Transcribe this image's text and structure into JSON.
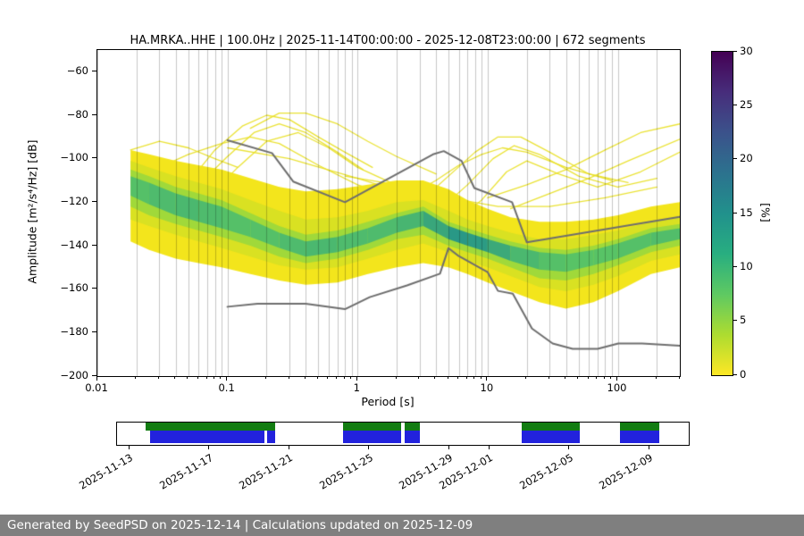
{
  "footer": {
    "text": "Generated by SeedPSD on 2025-12-14 | Calculations updated on 2025-12-09",
    "bg": "#7f7f7f",
    "fg": "#ffffff"
  },
  "chart_data": {
    "type": "heatmap",
    "title": "HA.MRKA..HHE | 100.0Hz | 2025-11-14T00:00:00 - 2025-12-08T23:00:00 | 672 segments",
    "xlabel": "Period [s]",
    "ylabel": "Amplitude [m²/s⁴/Hz] [dB]",
    "xscale": "log",
    "xlim": [
      0.01,
      300
    ],
    "ylim": [
      -200,
      -50
    ],
    "grid": true,
    "xticks": [
      {
        "v": 0.01,
        "label": "0.01"
      },
      {
        "v": 0.1,
        "label": "0.1"
      },
      {
        "v": 1,
        "label": "1"
      },
      {
        "v": 10,
        "label": "10"
      },
      {
        "v": 100,
        "label": "100"
      }
    ],
    "yticks": [
      {
        "v": -60,
        "label": "−60"
      },
      {
        "v": -80,
        "label": "−80"
      },
      {
        "v": -100,
        "label": "−100"
      },
      {
        "v": -120,
        "label": "−120"
      },
      {
        "v": -140,
        "label": "−140"
      },
      {
        "v": -160,
        "label": "−160"
      },
      {
        "v": -180,
        "label": "−180"
      },
      {
        "v": -200,
        "label": "−200"
      }
    ],
    "colorbar": {
      "label": "[%]",
      "min": 0,
      "max": 30,
      "ticks": [
        {
          "v": 0,
          "label": "0"
        },
        {
          "v": 5,
          "label": "5"
        },
        {
          "v": 10,
          "label": "10"
        },
        {
          "v": 15,
          "label": "15"
        },
        {
          "v": 20,
          "label": "20"
        },
        {
          "v": 25,
          "label": "25"
        },
        {
          "v": 30,
          "label": "30"
        }
      ],
      "gradient_bottom_to_top": [
        "#fde725",
        "#addc30",
        "#5ec962",
        "#28ae80",
        "#21918c",
        "#2c728e",
        "#3b528b",
        "#472d7b",
        "#440154"
      ]
    },
    "palette": {
      "outer": "#f3e51c",
      "mid": "#d9e122",
      "inner": "#a0d93a",
      "core_low": "#5ec962",
      "core_high": "#208f8c",
      "stray": "#e8df24",
      "noise_model": "#6e6e6e",
      "grid": "rgba(0,0,0,0.22)"
    },
    "density_band_format": "p, outerTop, outerBottom, midTop, midBottom, innerTop, innerBottom, coreTop, coreBottom, coreIntensity (dB values)",
    "density_band": [
      [
        0.018,
        -96,
        -138,
        -101,
        -128,
        -105,
        -122,
        -108,
        -117,
        0.5
      ],
      [
        0.025,
        -98,
        -142,
        -104,
        -131,
        -108,
        -126,
        -111,
        -121,
        0.55
      ],
      [
        0.04,
        -101,
        -146,
        -108,
        -135,
        -113,
        -130,
        -116,
        -126,
        0.6
      ],
      [
        0.06,
        -103,
        -148,
        -111,
        -138,
        -116,
        -133,
        -119,
        -129,
        0.6
      ],
      [
        0.09,
        -105,
        -150,
        -114,
        -141,
        -119,
        -136,
        -122,
        -132,
        0.55
      ],
      [
        0.15,
        -109,
        -153,
        -119,
        -145,
        -125,
        -140,
        -128,
        -136,
        0.5
      ],
      [
        0.25,
        -113,
        -156,
        -124,
        -149,
        -131,
        -145,
        -134,
        -141,
        0.55
      ],
      [
        0.4,
        -115,
        -158,
        -128,
        -151,
        -135,
        -148,
        -138,
        -145,
        0.6
      ],
      [
        0.7,
        -114,
        -157,
        -127,
        -150,
        -133,
        -146,
        -136,
        -143,
        0.6
      ],
      [
        1.2,
        -112,
        -153,
        -124,
        -146,
        -129,
        -142,
        -132,
        -139,
        0.55
      ],
      [
        2,
        -110,
        -150,
        -120,
        -142,
        -125,
        -137,
        -127,
        -134,
        0.6
      ],
      [
        3.2,
        -110,
        -148,
        -119,
        -139,
        -122,
        -135,
        -124,
        -131,
        0.65
      ],
      [
        5,
        -114,
        -150,
        -124,
        -143,
        -129,
        -140,
        -131,
        -137,
        0.85
      ],
      [
        7,
        -119,
        -153,
        -128,
        -147,
        -132,
        -143,
        -134,
        -140,
        0.9
      ],
      [
        10,
        -123,
        -157,
        -131,
        -150,
        -135,
        -146,
        -137,
        -143,
        0.8
      ],
      [
        15,
        -127,
        -161,
        -134,
        -154,
        -138,
        -150,
        -140,
        -147,
        0.65
      ],
      [
        25,
        -129,
        -166,
        -137,
        -159,
        -141,
        -155,
        -143,
        -151,
        0.55
      ],
      [
        40,
        -129,
        -169,
        -137,
        -161,
        -142,
        -156,
        -144,
        -152,
        0.5
      ],
      [
        65,
        -128,
        -166,
        -135,
        -158,
        -140,
        -153,
        -142,
        -149,
        0.5
      ],
      [
        100,
        -126,
        -161,
        -133,
        -154,
        -137,
        -149,
        -139,
        -146,
        0.5
      ],
      [
        180,
        -122,
        -153,
        -129,
        -147,
        -132,
        -143,
        -134,
        -140,
        0.55
      ],
      [
        300,
        -120,
        -150,
        -127,
        -144,
        -130,
        -140,
        -132,
        -137,
        0.55
      ]
    ],
    "noise_models": [
      {
        "name": "NHNM",
        "points": [
          [
            0.1,
            -91.5
          ],
          [
            0.22,
            -97.4
          ],
          [
            0.32,
            -110.5
          ],
          [
            0.8,
            -120
          ],
          [
            3.8,
            -98
          ],
          [
            4.6,
            -96.5
          ],
          [
            6.3,
            -101
          ],
          [
            7.9,
            -113.5
          ],
          [
            15.4,
            -120
          ],
          [
            20,
            -138.5
          ],
          [
            300,
            -126.7
          ]
        ]
      },
      {
        "name": "NLNM",
        "points": [
          [
            0.1,
            -168.1
          ],
          [
            0.17,
            -166.7
          ],
          [
            0.4,
            -166.7
          ],
          [
            0.8,
            -169.2
          ],
          [
            1.24,
            -163.7
          ],
          [
            2.4,
            -158.3
          ],
          [
            4.3,
            -152.9
          ],
          [
            5,
            -141.1
          ],
          [
            6,
            -144.8
          ],
          [
            10,
            -152.2
          ],
          [
            12,
            -160.8
          ],
          [
            15.6,
            -162.1
          ],
          [
            21.9,
            -178.1
          ],
          [
            31.6,
            -185
          ],
          [
            45,
            -187.5
          ],
          [
            70,
            -187.5
          ],
          [
            101,
            -185
          ],
          [
            154,
            -185
          ],
          [
            300,
            -186
          ]
        ]
      }
    ],
    "stray_lines": [
      [
        [
          0.055,
          -108
        ],
        [
          0.08,
          -96
        ],
        [
          0.13,
          -85
        ],
        [
          0.2,
          -80
        ],
        [
          0.3,
          -82
        ],
        [
          0.5,
          -90
        ],
        [
          0.8,
          -97
        ],
        [
          1.3,
          -104
        ]
      ],
      [
        [
          0.06,
          -112
        ],
        [
          0.1,
          -99
        ],
        [
          0.16,
          -88
        ],
        [
          0.25,
          -84
        ],
        [
          0.4,
          -88
        ],
        [
          0.7,
          -97
        ],
        [
          1.1,
          -105
        ]
      ],
      [
        [
          0.15,
          -86
        ],
        [
          0.25,
          -79
        ],
        [
          0.4,
          -79
        ],
        [
          0.7,
          -84
        ],
        [
          1.2,
          -92
        ],
        [
          2,
          -99
        ],
        [
          4,
          -107
        ]
      ],
      [
        [
          0.07,
          -118
        ],
        [
          0.12,
          -104
        ],
        [
          0.2,
          -92
        ],
        [
          0.35,
          -88
        ],
        [
          0.6,
          -95
        ],
        [
          1,
          -104
        ],
        [
          1.8,
          -111
        ]
      ],
      [
        [
          0.03,
          -104
        ],
        [
          0.05,
          -98
        ],
        [
          0.09,
          -93
        ],
        [
          0.15,
          -90
        ],
        [
          0.25,
          -93
        ],
        [
          0.5,
          -103
        ],
        [
          1,
          -112
        ],
        [
          2,
          -118
        ]
      ],
      [
        [
          0.018,
          -96
        ],
        [
          0.03,
          -92
        ],
        [
          0.05,
          -95
        ],
        [
          0.08,
          -100
        ],
        [
          0.12,
          -104
        ]
      ],
      [
        [
          0.1,
          -95
        ],
        [
          0.3,
          -100
        ],
        [
          1,
          -109
        ],
        [
          3,
          -118
        ],
        [
          7,
          -124
        ]
      ],
      [
        [
          0.02,
          -100
        ],
        [
          0.06,
          -106
        ],
        [
          0.2,
          -112
        ],
        [
          0.6,
          -119
        ],
        [
          1.5,
          -124
        ]
      ],
      [
        [
          3,
          -120
        ],
        [
          5,
          -108
        ],
        [
          8,
          -97
        ],
        [
          12,
          -90
        ],
        [
          18,
          -90
        ],
        [
          30,
          -97
        ],
        [
          60,
          -107
        ],
        [
          120,
          -111
        ]
      ],
      [
        [
          4,
          -125
        ],
        [
          7,
          -112
        ],
        [
          11,
          -100
        ],
        [
          16,
          -94
        ],
        [
          25,
          -98
        ],
        [
          50,
          -108
        ],
        [
          100,
          -113
        ],
        [
          200,
          -109
        ]
      ],
      [
        [
          5,
          -131
        ],
        [
          9,
          -119
        ],
        [
          14,
          -106
        ],
        [
          20,
          -101
        ],
        [
          35,
          -107
        ],
        [
          70,
          -113
        ],
        [
          150,
          -106
        ],
        [
          300,
          -97
        ]
      ],
      [
        [
          10,
          -118
        ],
        [
          20,
          -112
        ],
        [
          40,
          -105
        ],
        [
          80,
          -96
        ],
        [
          150,
          -88
        ],
        [
          300,
          -84
        ]
      ],
      [
        [
          15,
          -123
        ],
        [
          30,
          -116
        ],
        [
          60,
          -109
        ],
        [
          120,
          -101
        ],
        [
          300,
          -91
        ]
      ],
      [
        [
          0.8,
          -108
        ],
        [
          2,
          -112
        ],
        [
          5,
          -118
        ],
        [
          12,
          -122
        ],
        [
          30,
          -122
        ],
        [
          80,
          -118
        ],
        [
          200,
          -113
        ]
      ],
      [
        [
          2.5,
          -117
        ],
        [
          4,
          -110
        ],
        [
          6,
          -103
        ],
        [
          9,
          -98
        ],
        [
          13,
          -95
        ],
        [
          20,
          -97
        ],
        [
          40,
          -104
        ],
        [
          90,
          -110
        ]
      ]
    ],
    "timeline": {
      "green": "#127c12",
      "blue": "#2222dd",
      "green_segments": [
        [
          0.05,
          0.277
        ],
        [
          0.395,
          0.497
        ],
        [
          0.503,
          0.53
        ],
        [
          0.708,
          0.81
        ],
        [
          0.88,
          0.949
        ]
      ],
      "blue_segments": [
        [
          0.058,
          0.258
        ],
        [
          0.262,
          0.277
        ],
        [
          0.395,
          0.497
        ],
        [
          0.503,
          0.53
        ],
        [
          0.708,
          0.81
        ],
        [
          0.88,
          0.949
        ]
      ],
      "ticks": [
        {
          "f": 0.022,
          "label": "2025-11-13"
        },
        {
          "f": 0.162,
          "label": "2025-11-17"
        },
        {
          "f": 0.302,
          "label": "2025-11-21"
        },
        {
          "f": 0.442,
          "label": "2025-11-25"
        },
        {
          "f": 0.582,
          "label": "2025-11-29"
        },
        {
          "f": 0.652,
          "label": "2025-12-01"
        },
        {
          "f": 0.792,
          "label": "2025-12-05"
        },
        {
          "f": 0.932,
          "label": "2025-12-09"
        }
      ]
    }
  }
}
